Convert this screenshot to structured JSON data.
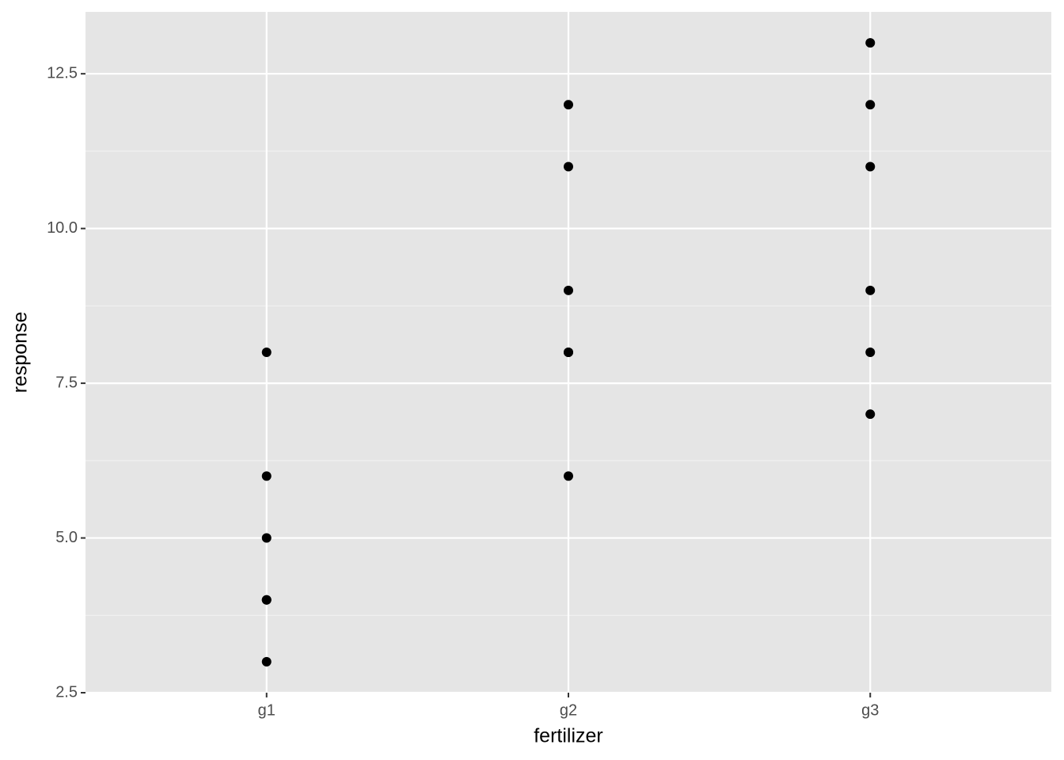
{
  "chart_data": {
    "type": "scatter",
    "x_label": "fertilizer",
    "y_label": "response",
    "categories": [
      "g1",
      "g2",
      "g3"
    ],
    "values": [
      [
        3,
        4,
        4,
        5,
        6,
        8
      ],
      [
        6,
        8,
        8,
        9,
        11,
        12
      ],
      [
        7,
        8,
        9,
        11,
        12,
        13
      ]
    ],
    "color": "#000000",
    "ylim": [
      2.5,
      13.5
    ],
    "yticks": [
      2.5,
      {
        "value": 5,
        "label": "5.0"
      },
      7.5,
      {
        "value": 10,
        "label": "10.0"
      },
      12.5
    ],
    "minor_yticks": [
      3.75,
      6.25,
      8.75,
      11.25
    ],
    "grid": true
  }
}
